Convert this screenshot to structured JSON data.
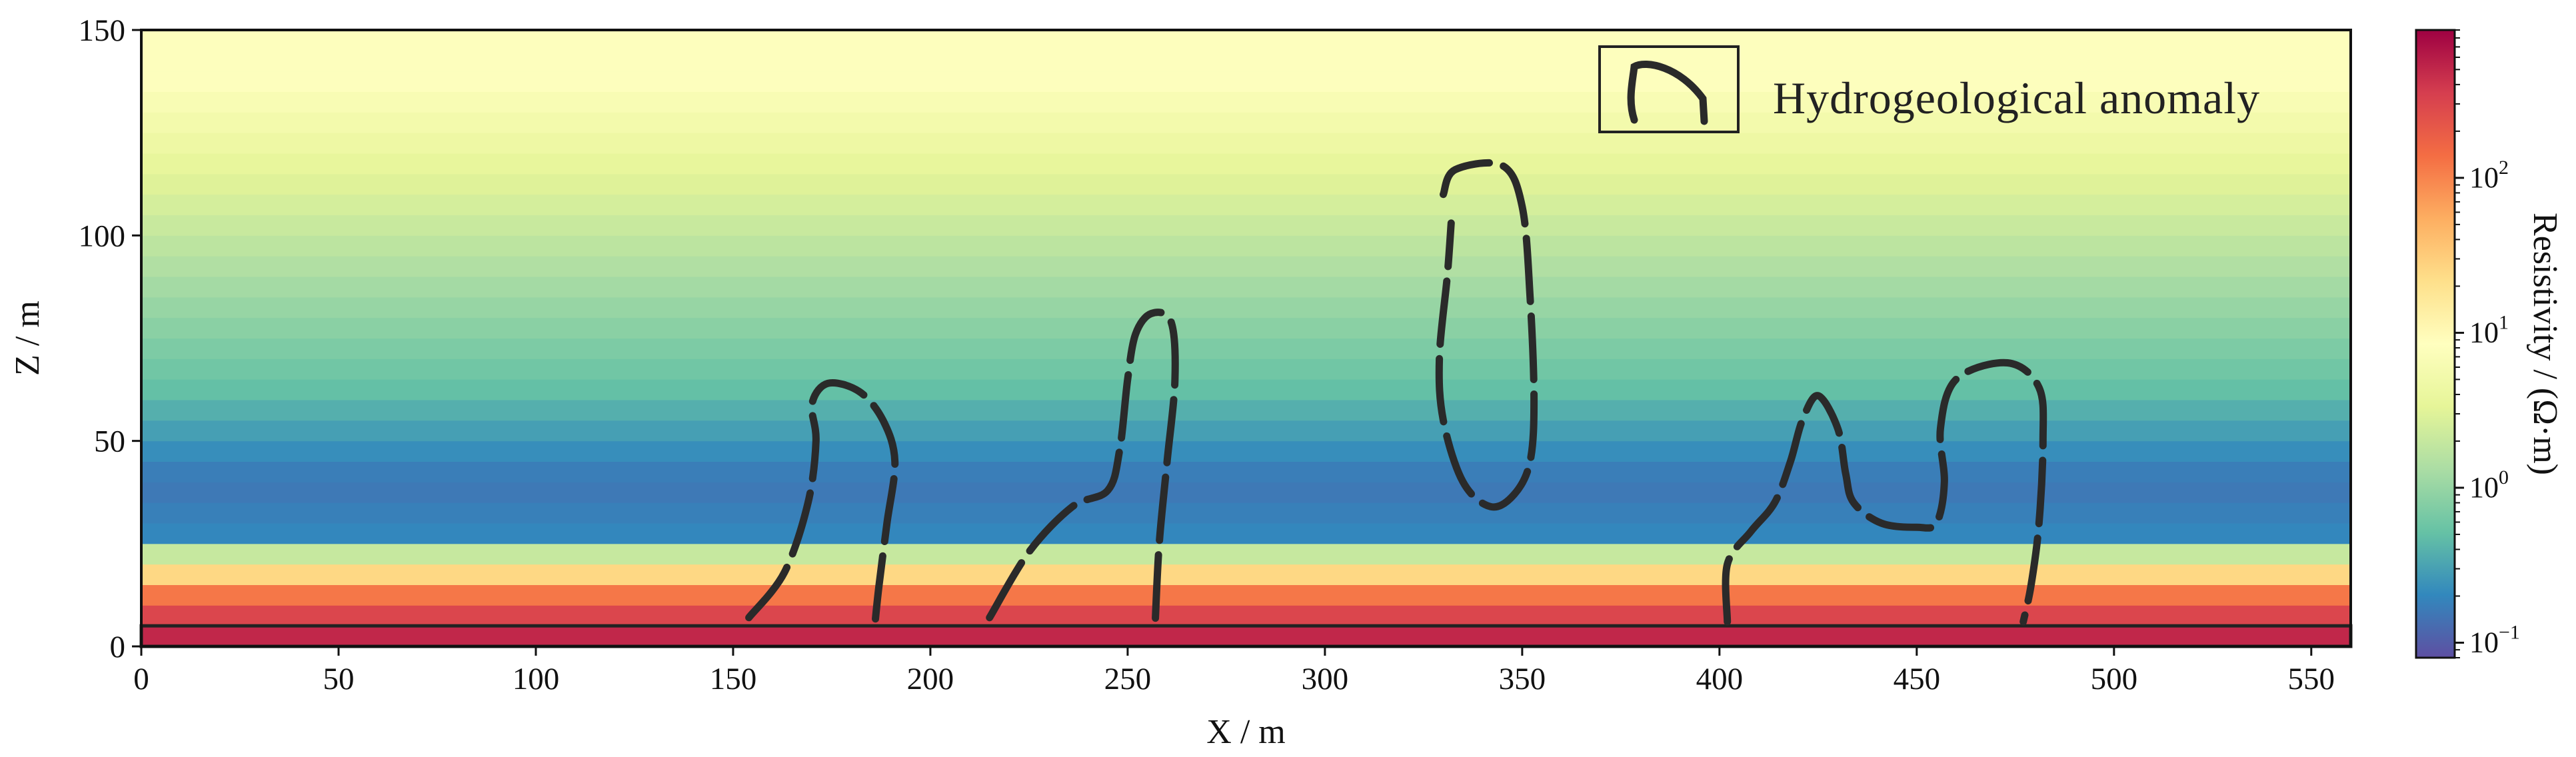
{
  "chart_data": {
    "type": "heatmap",
    "xlabel": "X / m",
    "ylabel": "Z / m",
    "xlim": [
      0,
      560
    ],
    "ylim": [
      0,
      150
    ],
    "x_ticks": [
      "0",
      "50",
      "100",
      "150",
      "200",
      "250",
      "300",
      "350",
      "400",
      "450",
      "500",
      "550"
    ],
    "y_ticks": [
      "0",
      "50",
      "100",
      "150"
    ],
    "colorbar": {
      "label": "Resistivity / (Ω·m)",
      "scale": "log",
      "range": [
        0.08,
        900
      ],
      "tick_values": [
        0.1,
        1,
        10,
        100
      ],
      "tick_labels": [
        {
          "base": "10",
          "exp": "−1"
        },
        {
          "base": "10",
          "exp": "0"
        },
        {
          "base": "10",
          "exp": "1"
        },
        {
          "base": "10",
          "exp": "2"
        }
      ],
      "colormap": "Spectral_r",
      "colors": [
        "#5e4fa2",
        "#3288bd",
        "#66c2a5",
        "#abdda4",
        "#e6f598",
        "#ffffbf",
        "#fee08b",
        "#fdae61",
        "#f46d43",
        "#d53e4f",
        "#9e0142"
      ]
    },
    "legend": {
      "label": "Hydrogeological anomaly",
      "placement": "top-right"
    },
    "resistivity_profile": [
      {
        "z_range": [
          0,
          5
        ],
        "resistivity": 500
      },
      {
        "z_range": [
          5,
          10
        ],
        "resistivity": 300
      },
      {
        "z_range": [
          10,
          15
        ],
        "resistivity": 120
      },
      {
        "z_range": [
          15,
          20
        ],
        "resistivity": 25
      },
      {
        "z_range": [
          20,
          25
        ],
        "resistivity": 2
      },
      {
        "z_range": [
          25,
          30
        ],
        "resistivity": 0.2
      },
      {
        "z_range": [
          30,
          50
        ],
        "resistivity": 0.15
      },
      {
        "z_range": [
          50,
          75
        ],
        "resistivity": 0.5
      },
      {
        "z_range": [
          75,
          100
        ],
        "resistivity": 1.2
      },
      {
        "z_range": [
          100,
          125
        ],
        "resistivity": 3
      },
      {
        "z_range": [
          125,
          150
        ],
        "resistivity": 8
      }
    ],
    "base_rectangle": {
      "x_range": [
        0,
        560
      ],
      "z_range": [
        0,
        5
      ]
    },
    "anomalies": [
      {
        "name": "anomaly-1",
        "points": [
          [
            154,
            7
          ],
          [
            163,
            18
          ],
          [
            169,
            35
          ],
          [
            171,
            50
          ],
          [
            170,
            59
          ],
          [
            174,
            64
          ],
          [
            182,
            62
          ],
          [
            188,
            55
          ],
          [
            191,
            45
          ],
          [
            189,
            30
          ],
          [
            187,
            15
          ],
          [
            186,
            6
          ]
        ]
      },
      {
        "name": "anomaly-2",
        "points": [
          [
            215,
            7
          ],
          [
            225,
            23
          ],
          [
            236,
            34
          ],
          [
            245,
            38
          ],
          [
            248,
            48
          ],
          [
            250,
            65
          ],
          [
            252,
            76
          ],
          [
            256,
            81
          ],
          [
            261,
            79
          ],
          [
            262,
            65
          ],
          [
            260,
            45
          ],
          [
            258,
            25
          ],
          [
            257,
            6
          ]
        ]
      },
      {
        "name": "anomaly-3",
        "points": [
          [
            330,
            110
          ],
          [
            333,
            116
          ],
          [
            345,
            117
          ],
          [
            350,
            107
          ],
          [
            352,
            85
          ],
          [
            353,
            60
          ],
          [
            352,
            45
          ],
          [
            348,
            37
          ],
          [
            342,
            34
          ],
          [
            335,
            40
          ],
          [
            330,
            55
          ],
          [
            329,
            70
          ],
          [
            331,
            90
          ],
          [
            332,
            103
          ]
        ]
      },
      {
        "name": "anomaly-4",
        "points": [
          [
            402,
            6
          ],
          [
            402,
            20
          ],
          [
            408,
            28
          ],
          [
            414,
            35
          ],
          [
            418,
            45
          ],
          [
            421,
            55
          ],
          [
            425,
            61
          ],
          [
            430,
            53
          ],
          [
            432,
            42
          ],
          [
            434,
            35
          ],
          [
            441,
            30
          ],
          [
            450,
            29
          ],
          [
            455,
            30
          ],
          [
            457,
            40
          ],
          [
            456,
            53
          ],
          [
            460,
            65
          ],
          [
            473,
            69
          ],
          [
            481,
            63
          ],
          [
            482,
            50
          ],
          [
            481,
            30
          ],
          [
            479,
            15
          ],
          [
            477,
            6
          ]
        ]
      }
    ]
  }
}
